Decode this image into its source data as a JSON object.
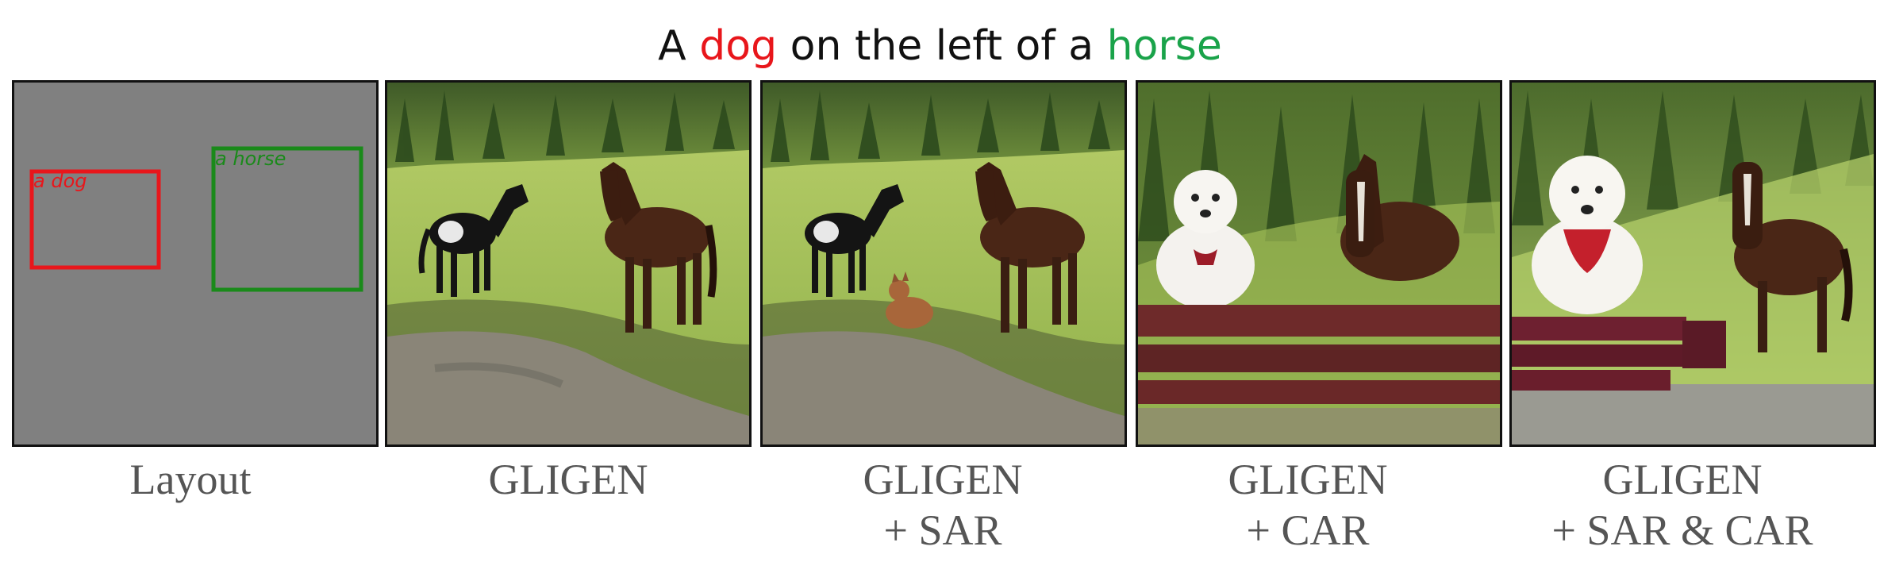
{
  "title": {
    "prefix": "A ",
    "subject": "dog",
    "middle": " on the left of a ",
    "object": "horse",
    "subject_color": "#e8161b",
    "object_color": "#1aa34a"
  },
  "layout_panel": {
    "background_color": "#808080",
    "boxes": [
      {
        "label": "a dog",
        "color": "#e8161b"
      },
      {
        "label": "a horse",
        "color": "#1a8a1a"
      }
    ]
  },
  "captions": [
    {
      "line1": "Layout",
      "line2": ""
    },
    {
      "line1": "GLIGEN",
      "line2": ""
    },
    {
      "line1": "GLIGEN",
      "line2": "+ SAR"
    },
    {
      "line1": "GLIGEN",
      "line2": "+ CAR"
    },
    {
      "line1": "GLIGEN",
      "line2": "+ SAR & CAR"
    }
  ]
}
